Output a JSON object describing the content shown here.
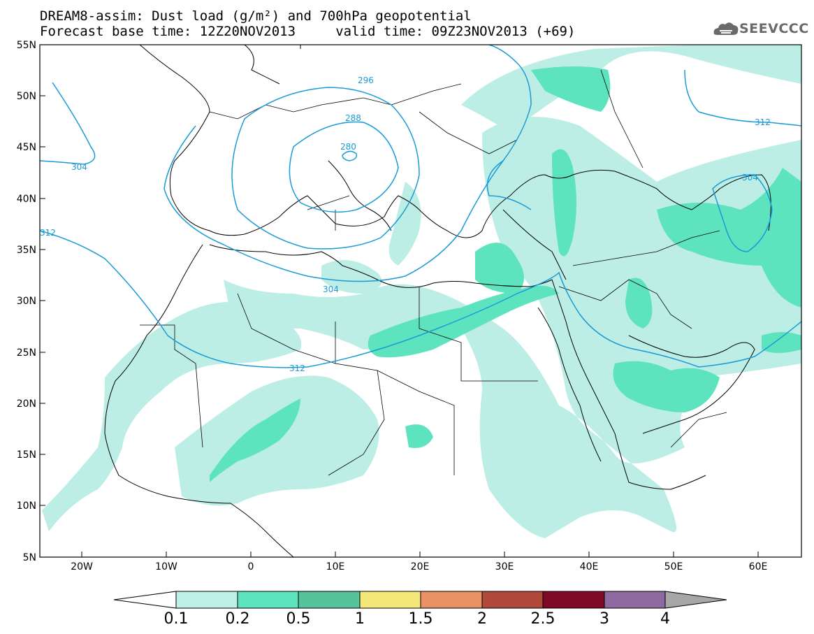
{
  "header": {
    "line1": "DREAM8-assim: Dust load (g/m²) and 700hPa geopotential",
    "line2": "Forecast base time: 12Z20NOV2013     valid time: 09Z23NOV2013 (+69)"
  },
  "logo": {
    "text": "SEEVCCC",
    "icon": "cloud-icon"
  },
  "map": {
    "lat_labels": [
      "55N",
      "50N",
      "45N",
      "40N",
      "35N",
      "30N",
      "25N",
      "20N",
      "15N",
      "10N",
      "5N"
    ],
    "lon_labels": [
      "20W",
      "10W",
      "0",
      "10E",
      "20E",
      "30E",
      "40E",
      "50E",
      "60E"
    ],
    "contour_labels": [
      "296",
      "288",
      "280",
      "304",
      "312",
      "304",
      "304",
      "312",
      "312"
    ],
    "colors": {
      "coast": "#000000",
      "contour": "#1a9bd7",
      "dust_low": "#bdeee6",
      "dust_mid": "#5ee3bf"
    }
  },
  "colorbar": {
    "labels": [
      "0.1",
      "0.2",
      "0.5",
      "1",
      "1.5",
      "2",
      "2.5",
      "3",
      "4"
    ],
    "colors": [
      "#bff0e8",
      "#5ee3bf",
      "#58c29c",
      "#f5e87a",
      "#ea9168",
      "#b0493a",
      "#7f0a26",
      "#8e6aa0"
    ],
    "under_color": "#ffffff",
    "over_color": "#a7a7a7"
  }
}
